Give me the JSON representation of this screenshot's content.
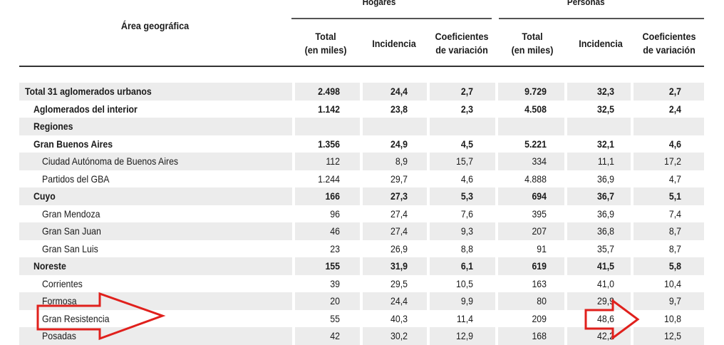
{
  "header": {
    "area_label": "Área geográfica",
    "group_hogares": "Hogares",
    "group_personas": "Personas",
    "columns": [
      {
        "line1": "Total",
        "line2": "(en miles)"
      },
      {
        "line1": "Incidencia",
        "line2": ""
      },
      {
        "line1": "Coeficientes",
        "line2": "de variación"
      },
      {
        "line1": "Total",
        "line2": "(en miles)"
      },
      {
        "line1": "Incidencia",
        "line2": ""
      },
      {
        "line1": "Coeficientes",
        "line2": "de variación"
      }
    ]
  },
  "rows": [
    {
      "name": "Total 31 aglomerados urbanos",
      "level": 0,
      "bold": true,
      "values": [
        "2.498",
        "24,4",
        "2,7",
        "9.729",
        "32,3",
        "2,7"
      ]
    },
    {
      "name": "Aglomerados del interior",
      "level": 1,
      "bold": true,
      "values": [
        "1.142",
        "23,8",
        "2,3",
        "4.508",
        "32,5",
        "2,4"
      ]
    },
    {
      "name": "Regiones",
      "level": 1,
      "bold": true,
      "values": [
        "",
        "",
        "",
        "",
        "",
        ""
      ]
    },
    {
      "name": "Gran Buenos Aires",
      "level": 2,
      "bold": true,
      "values": [
        "1.356",
        "24,9",
        "4,5",
        "5.221",
        "32,1",
        "4,6"
      ]
    },
    {
      "name": "Ciudad Autónoma de Buenos Aires",
      "level": 3,
      "bold": false,
      "values": [
        "112",
        "8,9",
        "15,7",
        "334",
        "11,1",
        "17,2"
      ]
    },
    {
      "name": "Partidos del GBA",
      "level": 3,
      "bold": false,
      "values": [
        "1.244",
        "29,7",
        "4,6",
        "4.888",
        "36,9",
        "4,7"
      ]
    },
    {
      "name": "Cuyo",
      "level": 2,
      "bold": true,
      "values": [
        "166",
        "27,3",
        "5,3",
        "694",
        "36,7",
        "5,1"
      ]
    },
    {
      "name": "Gran Mendoza",
      "level": 3,
      "bold": false,
      "values": [
        "96",
        "27,4",
        "7,6",
        "395",
        "36,9",
        "7,4"
      ]
    },
    {
      "name": "Gran San Juan",
      "level": 3,
      "bold": false,
      "values": [
        "46",
        "27,4",
        "9,3",
        "207",
        "36,8",
        "8,7"
      ]
    },
    {
      "name": "Gran San Luis",
      "level": 3,
      "bold": false,
      "values": [
        "23",
        "26,9",
        "8,8",
        "91",
        "35,7",
        "8,7"
      ]
    },
    {
      "name": "Noreste",
      "level": 2,
      "bold": true,
      "values": [
        "155",
        "31,9",
        "6,1",
        "619",
        "41,5",
        "5,8"
      ]
    },
    {
      "name": "Corrientes",
      "level": 3,
      "bold": false,
      "values": [
        "39",
        "29,5",
        "10,5",
        "163",
        "41,0",
        "10,4"
      ]
    },
    {
      "name": "Formosa",
      "level": 3,
      "bold": false,
      "values": [
        "20",
        "24,4",
        "9,9",
        "80",
        "29,9",
        "9,7"
      ]
    },
    {
      "name": "Gran Resistencia",
      "level": 3,
      "bold": false,
      "values": [
        "55",
        "40,3",
        "11,4",
        "209",
        "48,6",
        "10,8"
      ]
    },
    {
      "name": "Posadas",
      "level": 3,
      "bold": false,
      "values": [
        "42",
        "30,2",
        "12,9",
        "168",
        "42,2",
        "12,5"
      ]
    }
  ],
  "annotations": {
    "color": "#e0201c"
  }
}
